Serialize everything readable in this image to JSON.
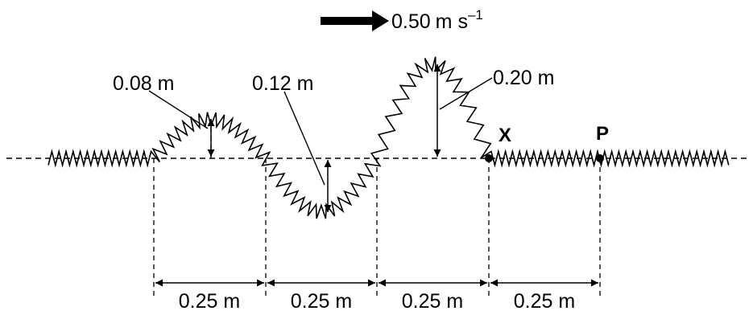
{
  "speed_label": {
    "value": "0.50",
    "unit_main": "m s",
    "unit_exp": "–1"
  },
  "amplitude_labels": [
    "0.08 m",
    "0.12 m",
    "0.20 m"
  ],
  "spacing_labels": [
    "0.25 m",
    "0.25 m",
    "0.25 m",
    "0.25 m"
  ],
  "point_labels": {
    "x": "X",
    "p": "P"
  },
  "colors": {
    "ink": "#000000",
    "background": "#ffffff"
  }
}
